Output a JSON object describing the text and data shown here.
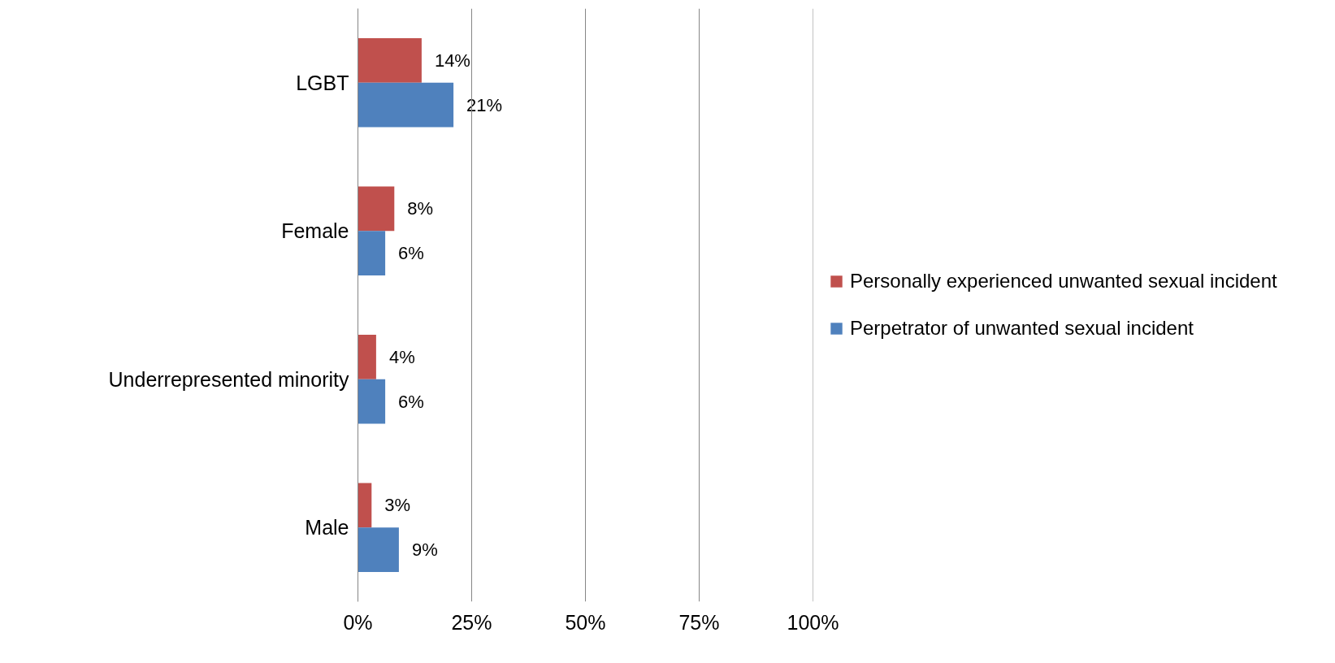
{
  "chart_data": {
    "type": "bar",
    "orientation": "horizontal",
    "categories": [
      "LGBT",
      "Female",
      "Underrepresented minority",
      "Male"
    ],
    "series": [
      {
        "name": "Personally experienced unwanted sexual incident",
        "color": "#c0504d",
        "values": [
          14,
          8,
          4,
          3
        ],
        "value_labels": [
          "14%",
          "8%",
          "4%",
          "3%"
        ]
      },
      {
        "name": "Perpetrator of unwanted sexual incident",
        "color": "#4f81bd",
        "values": [
          21,
          6,
          6,
          9
        ],
        "value_labels": [
          "21%",
          "6%",
          "6%",
          "9%"
        ]
      }
    ],
    "xlim": [
      0,
      100
    ],
    "xticks": [
      {
        "value": 0,
        "label": "0%"
      },
      {
        "value": 25,
        "label": "25%"
      },
      {
        "value": 50,
        "label": "50%"
      },
      {
        "value": 75,
        "label": "75%"
      },
      {
        "value": 100,
        "label": "100%"
      }
    ],
    "grid": "x",
    "legend": "right"
  }
}
